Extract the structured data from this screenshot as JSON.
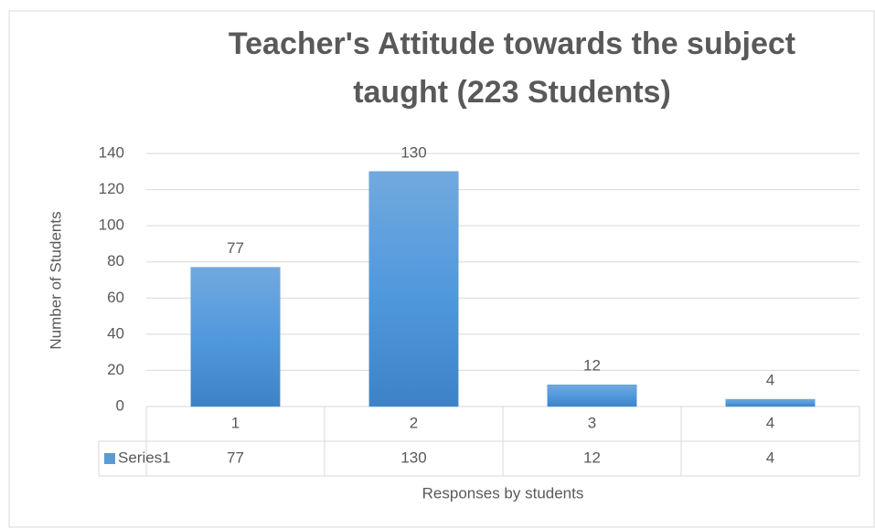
{
  "chart_data": {
    "type": "bar",
    "title": "Teacher's Attitude towards the subject taught  (223 Students)",
    "title_lines": [
      "Teacher's Attitude towards the subject",
      "taught  (223 Students)"
    ],
    "categories": [
      "1",
      "2",
      "3",
      "4"
    ],
    "series": [
      {
        "name": "Series1",
        "color": "#5b9bd5",
        "values": [
          77,
          130,
          12,
          4
        ]
      }
    ],
    "ylim": [
      0,
      140
    ],
    "yticks": [
      0,
      20,
      40,
      60,
      80,
      100,
      120,
      140
    ],
    "y_label": "Number of Students",
    "x_label": "Responses by students",
    "grid": true,
    "data_table": true
  }
}
